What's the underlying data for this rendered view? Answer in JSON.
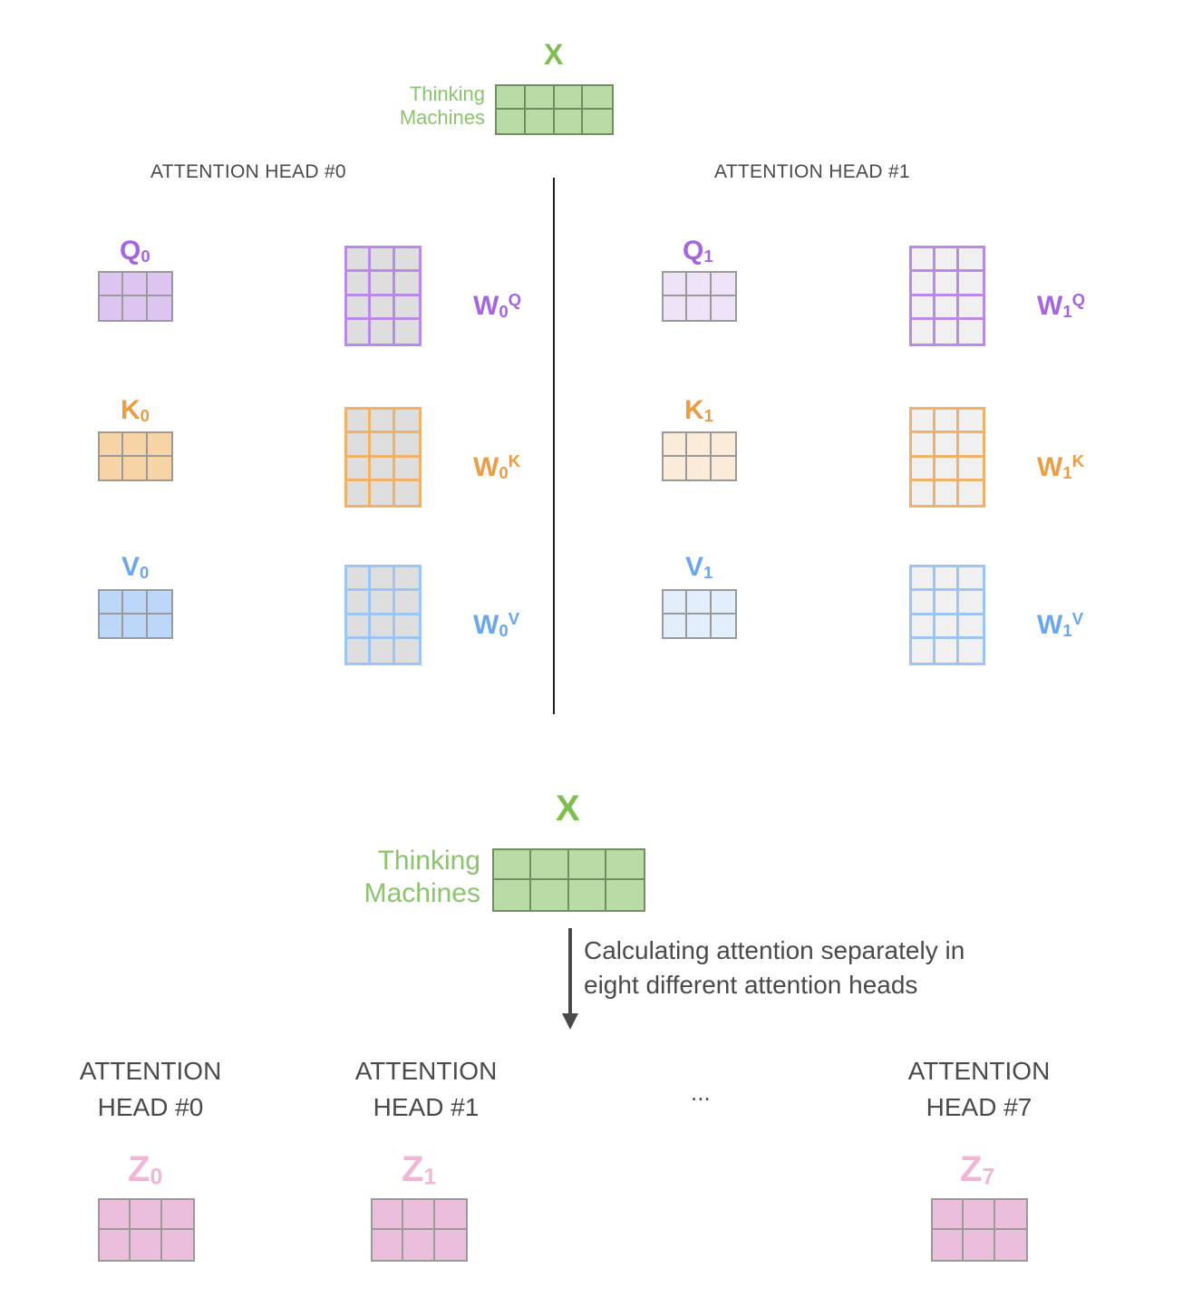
{
  "top": {
    "x_label": "X",
    "words": [
      "Thinking",
      "Machines"
    ]
  },
  "heads": [
    {
      "title": "ATTENTION HEAD #0",
      "q": {
        "base": "Q",
        "sub": "0"
      },
      "k": {
        "base": "K",
        "sub": "0"
      },
      "v": {
        "base": "V",
        "sub": "0"
      },
      "wq": {
        "base": "W",
        "sub": "0",
        "sup": "Q"
      },
      "wk": {
        "base": "W",
        "sub": "0",
        "sup": "K"
      },
      "wv": {
        "base": "W",
        "sub": "0",
        "sup": "V"
      }
    },
    {
      "title": "ATTENTION HEAD #1",
      "q": {
        "base": "Q",
        "sub": "1"
      },
      "k": {
        "base": "K",
        "sub": "1"
      },
      "v": {
        "base": "V",
        "sub": "1"
      },
      "wq": {
        "base": "W",
        "sub": "1",
        "sup": "Q"
      },
      "wk": {
        "base": "W",
        "sub": "1",
        "sup": "K"
      },
      "wv": {
        "base": "W",
        "sub": "1",
        "sup": "V"
      }
    }
  ],
  "bottom": {
    "x_label": "X",
    "words": [
      "Thinking",
      "Machines"
    ],
    "arrow_text": [
      "Calculating attention separately in",
      "eight different attention heads"
    ],
    "ellipsis": "...",
    "heads": [
      {
        "line1": "ATTENTION",
        "line2": "HEAD #0",
        "z": {
          "base": "Z",
          "sub": "0"
        }
      },
      {
        "line1": "ATTENTION",
        "line2": "HEAD #1",
        "z": {
          "base": "Z",
          "sub": "1"
        }
      },
      {
        "line1": "ATTENTION",
        "line2": "HEAD #7",
        "z": {
          "base": "Z",
          "sub": "7"
        }
      }
    ]
  },
  "colors": {
    "green_fill": "#b9dca6",
    "green_border": "#6f8f60",
    "green_text": "#7cbf4e",
    "purple_text": "#a565e3",
    "purple_border": "#b98ae8",
    "purple_fill_strong": "#dcc5f0",
    "purple_fill_light": "#efe3f7",
    "orange_text": "#eb9c44",
    "orange_border": "#f0b16b",
    "orange_fill_strong": "#f6d4a6",
    "orange_fill_light": "#fbecd9",
    "blue_text": "#6aa7ef",
    "blue_border": "#9cc4f4",
    "blue_fill_strong": "#bcd7f7",
    "blue_fill_light": "#e3eefb",
    "weight_fill_dark": "#dedede",
    "weight_fill_light": "#f0f0f0",
    "pink_text": "#efb6d5",
    "pink_fill": "#ebbfdb",
    "grid_line": "#9a9a9a",
    "text_gray": "#4a4a4a"
  }
}
